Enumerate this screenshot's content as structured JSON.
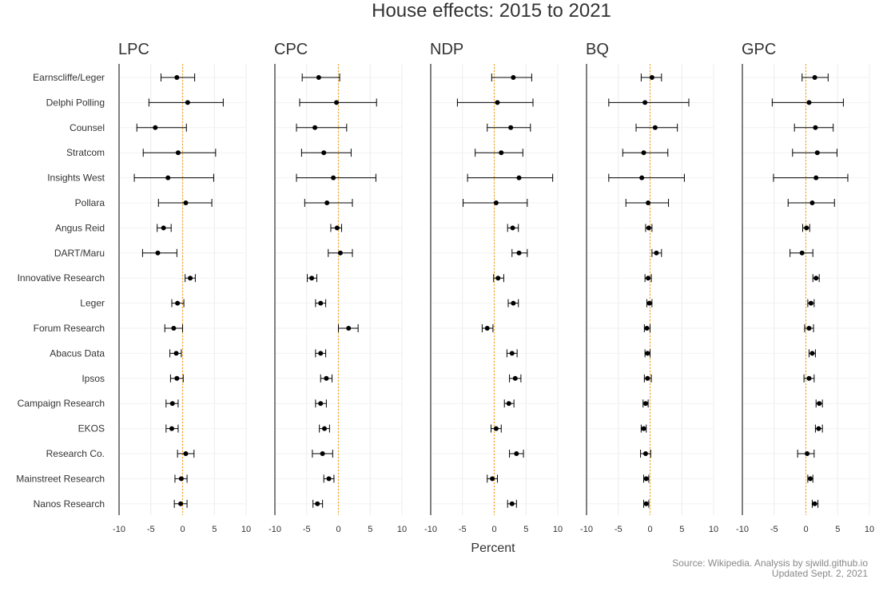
{
  "chart_data": {
    "type": "scatter",
    "title": "House effects: 2015 to 2021",
    "xlabel": "Percent",
    "xlim": [
      -10,
      10
    ],
    "xticks": [
      "-10",
      "-5",
      "0",
      "5",
      "10"
    ],
    "pollsters": [
      "Earnscliffe/Leger",
      "Delphi Polling",
      "Counsel",
      "Stratcom",
      "Insights West",
      "Pollara",
      "Angus Reid",
      "DART/Maru",
      "Innovative Research",
      "Leger",
      "Forum Research",
      "Abacus Data",
      "Ipsos",
      "Campaign Research",
      "EKOS",
      "Research Co.",
      "Mainstreet Research",
      "Nanos Research"
    ],
    "reference_line": 0,
    "reference_color": "#f5a623",
    "point_color": "#000000",
    "panels": [
      {
        "name": "LPC",
        "estimate": [
          -0.9,
          0.8,
          -4.3,
          -0.7,
          -2.3,
          0.5,
          -3.0,
          -3.9,
          1.2,
          -0.8,
          -1.4,
          -1.0,
          -0.9,
          -1.6,
          -1.7,
          0.5,
          -0.2,
          -0.3
        ],
        "lower": [
          -3.4,
          -5.3,
          -7.2,
          -6.2,
          -7.6,
          -3.8,
          -4.0,
          -6.3,
          0.4,
          -1.7,
          -2.8,
          -2.0,
          -1.9,
          -2.6,
          -2.6,
          -0.8,
          -1.2,
          -1.3
        ],
        "upper": [
          1.9,
          6.4,
          0.6,
          5.2,
          4.9,
          4.6,
          -1.8,
          -0.9,
          2.0,
          0.2,
          0.0,
          -0.2,
          0.1,
          -0.7,
          -0.7,
          1.8,
          0.7,
          0.7
        ]
      },
      {
        "name": "CPC",
        "estimate": [
          -3.1,
          -0.3,
          -3.7,
          -2.3,
          -0.8,
          -1.8,
          -0.2,
          0.3,
          -4.2,
          -2.8,
          1.6,
          -2.8,
          -1.9,
          -2.8,
          -2.2,
          -2.5,
          -1.5,
          -3.3
        ],
        "lower": [
          -5.7,
          -6.1,
          -6.6,
          -5.8,
          -6.6,
          -5.3,
          -1.2,
          -1.6,
          -4.9,
          -3.6,
          0.0,
          -3.6,
          -2.8,
          -3.6,
          -3.0,
          -4.1,
          -2.3,
          -4.0
        ],
        "upper": [
          0.2,
          6.0,
          1.3,
          2.0,
          5.9,
          2.2,
          0.5,
          2.2,
          -3.4,
          -2.0,
          3.1,
          -2.0,
          -1.0,
          -1.9,
          -1.4,
          -0.9,
          -0.7,
          -2.5
        ]
      },
      {
        "name": "NDP",
        "estimate": [
          3.0,
          0.5,
          2.6,
          1.1,
          3.9,
          0.3,
          2.9,
          3.9,
          0.6,
          3.0,
          -1.1,
          2.8,
          3.3,
          2.3,
          0.3,
          3.5,
          -0.3,
          2.8
        ],
        "lower": [
          -0.4,
          -5.8,
          -1.1,
          -3.0,
          -4.2,
          -4.9,
          2.1,
          2.8,
          -0.1,
          2.2,
          -1.9,
          2.0,
          2.4,
          1.6,
          -0.5,
          2.4,
          -1.1,
          2.1
        ],
        "upper": [
          5.9,
          6.1,
          5.7,
          4.5,
          9.2,
          5.2,
          3.8,
          5.2,
          1.5,
          3.8,
          -0.2,
          3.6,
          4.2,
          3.1,
          1.1,
          4.6,
          0.5,
          3.5
        ]
      },
      {
        "name": "BQ",
        "estimate": [
          0.3,
          -0.8,
          0.8,
          -1.0,
          -1.3,
          -0.3,
          -0.2,
          1.0,
          -0.3,
          -0.1,
          -0.5,
          -0.4,
          -0.4,
          -0.7,
          -1.0,
          -0.7,
          -0.6,
          -0.6
        ],
        "lower": [
          -1.4,
          -6.5,
          -2.2,
          -4.3,
          -6.5,
          -3.8,
          -0.7,
          0.3,
          -0.8,
          -0.5,
          -0.9,
          -0.8,
          -0.9,
          -1.1,
          -1.4,
          -1.5,
          -1.0,
          -1.0
        ],
        "upper": [
          1.8,
          6.1,
          4.3,
          2.8,
          5.4,
          2.9,
          0.3,
          1.8,
          0.2,
          0.3,
          0.0,
          0.0,
          0.2,
          -0.3,
          -0.6,
          0.1,
          -0.2,
          -0.2
        ]
      },
      {
        "name": "GPC",
        "estimate": [
          1.4,
          0.5,
          1.5,
          1.8,
          1.6,
          1.0,
          0.1,
          -0.6,
          1.6,
          0.8,
          0.5,
          1.0,
          0.5,
          2.1,
          2.0,
          0.2,
          0.7,
          1.4
        ],
        "lower": [
          -0.6,
          -5.3,
          -1.8,
          -2.1,
          -5.1,
          -2.8,
          -0.5,
          -2.5,
          1.1,
          0.3,
          -0.2,
          0.5,
          -0.3,
          1.6,
          1.5,
          -1.3,
          0.3,
          1.0
        ],
        "upper": [
          3.5,
          5.9,
          4.3,
          4.9,
          6.6,
          4.5,
          0.6,
          1.1,
          2.1,
          1.3,
          1.2,
          1.5,
          1.3,
          2.6,
          2.6,
          1.3,
          1.1,
          1.9
        ]
      }
    ]
  },
  "source_line1": "Source: Wikipedia. Analysis by sjwild.github.io",
  "source_line2": "Updated Sept. 2, 2021"
}
